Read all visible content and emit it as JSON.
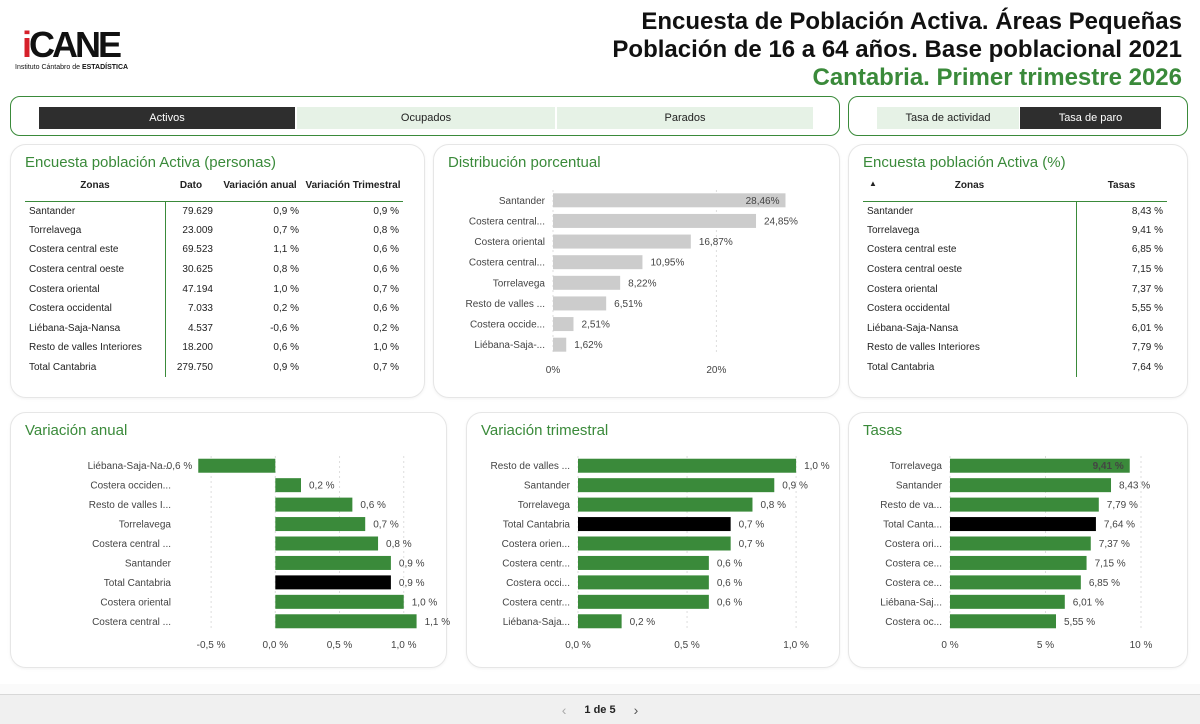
{
  "header": {
    "logo_text": "iCANE",
    "logo_subtitle_prefix": "Instituto Cántabro de ",
    "logo_subtitle_strong": "ESTADÍSTICA",
    "title_line1": "Encuesta de Población Activa. Áreas Pequeñas",
    "title_line2": "Población de 16 a 64 años. Base poblacional 2021",
    "title_line3": "Cantabria. Primer trimestre 2026"
  },
  "selectors": {
    "main": [
      {
        "label": "Activos",
        "active": true
      },
      {
        "label": "Ocupados",
        "active": false
      },
      {
        "label": "Parados",
        "active": false
      }
    ],
    "rates": [
      {
        "label": "Tasa de actividad",
        "active": false
      },
      {
        "label": "Tasa de paro",
        "active": true
      }
    ]
  },
  "colors": {
    "accent": "#3a8a3a",
    "bar_green": "#3a8a3a",
    "bar_total": "#000000",
    "bar_grey": "#cccccc",
    "active_seg": "#2e2e2e",
    "seg_bg": "#e6f2e6"
  },
  "table_personas": {
    "title": "Encuesta población Activa (personas)",
    "headers": [
      "Zonas",
      "Dato",
      "Variación anual",
      "Variación Trimestral"
    ],
    "rows": [
      [
        "Santander",
        "79.629",
        "0,9 %",
        "0,9 %"
      ],
      [
        "Torrelavega",
        "23.009",
        "0,7 %",
        "0,8 %"
      ],
      [
        "Costera central este",
        "69.523",
        "1,1 %",
        "0,6 %"
      ],
      [
        "Costera central oeste",
        "30.625",
        "0,8 %",
        "0,6 %"
      ],
      [
        "Costera oriental",
        "47.194",
        "1,0 %",
        "0,7 %"
      ],
      [
        "Costera occidental",
        "7.033",
        "0,2 %",
        "0,6 %"
      ],
      [
        "Liébana-Saja-Nansa",
        "4.537",
        "-0,6 %",
        "0,2 %"
      ],
      [
        "Resto de valles Interiores",
        "18.200",
        "0,6 %",
        "1,0 %"
      ],
      [
        "Total Cantabria",
        "279.750",
        "0,9 %",
        "0,7 %"
      ]
    ]
  },
  "table_pct": {
    "title": "Encuesta población Activa (%)",
    "sort_icon": "sort-ascending-icon",
    "headers": [
      "Zonas",
      "Tasas"
    ],
    "rows": [
      [
        "Santander",
        "8,43 %"
      ],
      [
        "Torrelavega",
        "9,41 %"
      ],
      [
        "Costera central este",
        "6,85 %"
      ],
      [
        "Costera central oeste",
        "7,15 %"
      ],
      [
        "Costera oriental",
        "7,37 %"
      ],
      [
        "Costera occidental",
        "5,55 %"
      ],
      [
        "Liébana-Saja-Nansa",
        "6,01 %"
      ],
      [
        "Resto de valles Interiores",
        "7,79 %"
      ],
      [
        "Total Cantabria",
        "7,64 %"
      ]
    ]
  },
  "chart_data": [
    {
      "id": "distribucion",
      "title": "Distribución porcentual",
      "type": "bar",
      "orientation": "horizontal",
      "categories": [
        "Santander",
        "Costera central...",
        "Costera oriental",
        "Costera central...",
        "Torrelavega",
        "Resto de valles ...",
        "Costera occide...",
        "Liébana-Saja-..."
      ],
      "values": [
        28.46,
        24.85,
        16.87,
        10.95,
        8.22,
        6.51,
        2.51,
        1.62
      ],
      "value_labels": [
        "28,46%",
        "24,85%",
        "16,87%",
        "10,95%",
        "8,22%",
        "6,51%",
        "2,51%",
        "1,62%"
      ],
      "highlight": [
        false,
        false,
        false,
        false,
        false,
        false,
        false,
        false
      ],
      "xlim": [
        0,
        29.5
      ],
      "ticks": [
        0,
        20
      ],
      "tick_labels": [
        "0%",
        "20%"
      ],
      "grid": true
    },
    {
      "id": "variacion_anual",
      "title": "Variación anual",
      "type": "bar",
      "orientation": "horizontal",
      "categories": [
        "Liébana-Saja-Na...",
        "Costera occiden...",
        "Resto de valles I...",
        "Torrelavega",
        "Costera central ...",
        "Santander",
        "Total Cantabria",
        "Costera oriental",
        "Costera central ..."
      ],
      "values": [
        -0.6,
        0.2,
        0.6,
        0.7,
        0.8,
        0.9,
        0.9,
        1.0,
        1.1
      ],
      "value_labels": [
        "-0,6 %",
        "0,2 %",
        "0,6 %",
        "0,7 %",
        "0,8 %",
        "0,9 %",
        "0,9 %",
        "1,0 %",
        "1,1 %"
      ],
      "highlight": [
        false,
        false,
        false,
        false,
        false,
        false,
        true,
        false,
        false
      ],
      "xlim": [
        -0.75,
        1.15
      ],
      "ticks": [
        -0.5,
        0,
        0.5,
        1.0
      ],
      "tick_labels": [
        "-0,5 %",
        "0,0 %",
        "0,5 %",
        "1,0 %"
      ],
      "grid": true
    },
    {
      "id": "variacion_trimestral",
      "title": "Variación trimestral",
      "type": "bar",
      "orientation": "horizontal",
      "categories": [
        "Resto de valles ...",
        "Santander",
        "Torrelavega",
        "Total Cantabria",
        "Costera orien...",
        "Costera centr...",
        "Costera occi...",
        "Costera centr...",
        "Liébana-Saja..."
      ],
      "values": [
        1.0,
        0.9,
        0.8,
        0.7,
        0.7,
        0.6,
        0.6,
        0.6,
        0.2
      ],
      "value_labels": [
        "1,0 %",
        "0,9 %",
        "0,8 %",
        "0,7 %",
        "0,7 %",
        "0,6 %",
        "0,6 %",
        "0,6 %",
        "0,2 %"
      ],
      "highlight": [
        false,
        false,
        false,
        true,
        false,
        false,
        false,
        false,
        false
      ],
      "xlim": [
        0,
        1.05
      ],
      "ticks": [
        0,
        0.5,
        1.0
      ],
      "tick_labels": [
        "0,0 %",
        "0,5 %",
        "1,0 %"
      ],
      "grid": true
    },
    {
      "id": "tasas",
      "title": "Tasas",
      "type": "bar",
      "orientation": "horizontal",
      "categories": [
        "Torrelavega",
        "Santander",
        "Resto de va...",
        "Total Canta...",
        "Costera ori...",
        "Costera ce...",
        "Costera ce...",
        "Liébana-Saj...",
        "Costera oc..."
      ],
      "values": [
        9.41,
        8.43,
        7.79,
        7.64,
        7.37,
        7.15,
        6.85,
        6.01,
        5.55
      ],
      "value_labels": [
        "9,41 %",
        "8,43 %",
        "7,79 %",
        "7,64 %",
        "7,37 %",
        "7,15 %",
        "6,85 %",
        "6,01 %",
        "5,55 %"
      ],
      "highlight": [
        false,
        false,
        false,
        true,
        false,
        false,
        false,
        false,
        false
      ],
      "xlim": [
        0,
        10
      ],
      "ticks": [
        0,
        5,
        10
      ],
      "tick_labels": [
        "0 %",
        "5 %",
        "10 %"
      ],
      "grid": true
    }
  ],
  "footer": {
    "page_label": "1 de 5",
    "prev_icon": "chevron-left-icon",
    "next_icon": "chevron-right-icon"
  }
}
